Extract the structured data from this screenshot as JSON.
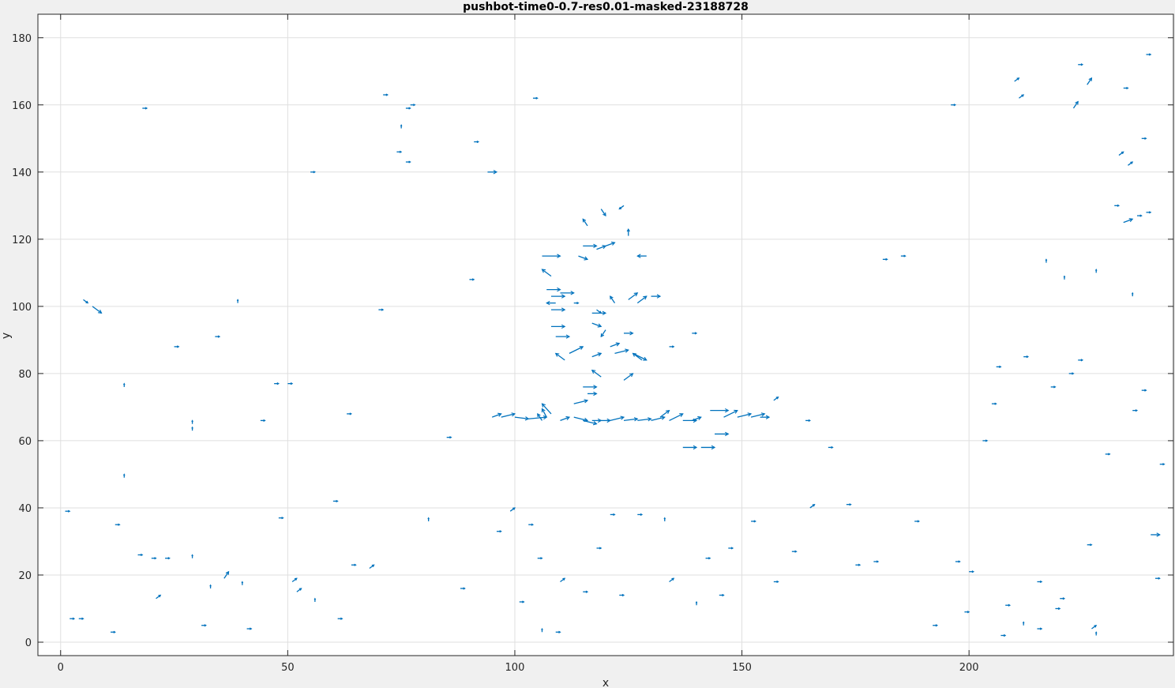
{
  "chart_data": {
    "type": "quiver",
    "title": "pushbot-time0-0.7-res0.01-masked-23188728",
    "xlabel": "x",
    "ylabel": "y",
    "xlim": [
      -5,
      245
    ],
    "ylim": [
      -4,
      187
    ],
    "xticks": [
      0,
      50,
      100,
      150,
      200
    ],
    "yticks": [
      0,
      20,
      40,
      60,
      80,
      100,
      120,
      140,
      160,
      180
    ],
    "grid": true,
    "colors": {
      "arrow": "#0072bd",
      "grid": "#dfdfdf",
      "axes": "#262626",
      "plot_bg": "#ffffff",
      "figure_bg": "#f0f0f0"
    },
    "series": [
      {
        "name": "flow vectors",
        "vectors": [
          [
            103,
            66.5,
            4,
            0.5
          ],
          [
            100,
            67,
            3,
            -0.5
          ],
          [
            97,
            67,
            3,
            1
          ],
          [
            95,
            67,
            2,
            1
          ],
          [
            108,
            68,
            -2,
            3
          ],
          [
            107,
            67,
            -1,
            2.5
          ],
          [
            106,
            66,
            -1,
            2
          ],
          [
            110,
            66,
            2,
            1
          ],
          [
            113,
            67,
            3,
            -1
          ],
          [
            115,
            66,
            3,
            -1
          ],
          [
            117,
            66,
            2,
            0
          ],
          [
            119,
            66,
            2,
            0
          ],
          [
            121,
            66,
            3,
            1
          ],
          [
            124,
            66,
            3,
            0.5
          ],
          [
            127,
            66,
            3,
            0.5
          ],
          [
            130,
            66,
            3,
            1
          ],
          [
            132,
            67,
            2,
            2
          ],
          [
            134,
            66,
            3,
            2
          ],
          [
            137,
            66,
            3,
            0
          ],
          [
            139,
            66,
            2,
            1
          ],
          [
            146,
            67,
            3,
            2
          ],
          [
            149,
            67,
            3,
            1
          ],
          [
            152,
            67,
            3,
            1
          ],
          [
            154,
            67,
            2,
            0
          ],
          [
            144,
            62,
            3,
            0
          ],
          [
            141,
            58,
            3,
            0
          ],
          [
            137,
            58,
            3,
            0
          ],
          [
            143,
            69,
            4,
            0
          ],
          [
            115,
            76,
            3,
            0
          ],
          [
            116,
            74,
            2,
            0
          ],
          [
            113,
            71,
            3,
            1
          ],
          [
            119,
            79,
            -2,
            2
          ],
          [
            124,
            78,
            2,
            2
          ],
          [
            128,
            84,
            -2,
            2
          ],
          [
            126,
            86,
            3,
            -2
          ],
          [
            122,
            86,
            3,
            1
          ],
          [
            117,
            85,
            2,
            1
          ],
          [
            112,
            86,
            3,
            2
          ],
          [
            111,
            84,
            -2,
            2
          ],
          [
            109,
            91,
            3,
            0
          ],
          [
            108,
            94,
            3,
            0
          ],
          [
            108,
            99,
            3,
            0
          ],
          [
            109,
            101,
            -2,
            0
          ],
          [
            108,
            103,
            3,
            0
          ],
          [
            107,
            105,
            3,
            0
          ],
          [
            108,
            109,
            -2,
            2
          ],
          [
            110,
            104,
            3,
            0
          ],
          [
            106,
            115,
            4,
            0
          ],
          [
            115,
            118,
            3,
            0
          ],
          [
            118,
            117,
            2,
            1
          ],
          [
            120,
            118,
            2,
            1
          ],
          [
            114,
            115,
            2,
            -1
          ],
          [
            116,
            124,
            -1,
            2
          ],
          [
            119,
            129,
            1,
            -2
          ],
          [
            124,
            130,
            -1,
            -1
          ],
          [
            125,
            121,
            0,
            2
          ],
          [
            129,
            115,
            -2,
            0
          ],
          [
            125,
            102,
            2,
            2
          ],
          [
            127,
            101,
            2,
            2
          ],
          [
            122,
            101,
            -1,
            2
          ],
          [
            117,
            98,
            3,
            0
          ],
          [
            117,
            95,
            2,
            -1
          ],
          [
            120,
            93,
            -1,
            -2
          ],
          [
            124,
            92,
            2,
            0
          ],
          [
            121,
            88,
            2,
            1
          ],
          [
            118,
            99,
            1,
            -1
          ],
          [
            130,
            103,
            2,
            0
          ],
          [
            139,
            92,
            1,
            0
          ],
          [
            134,
            88,
            1,
            0
          ],
          [
            5,
            102,
            1,
            -1
          ],
          [
            7,
            100,
            2,
            -2
          ],
          [
            14,
            76,
            0,
            1
          ],
          [
            14,
            49,
            0,
            1
          ],
          [
            17,
            26,
            1,
            0
          ],
          [
            20,
            25,
            1,
            0
          ],
          [
            23,
            25,
            1,
            0
          ],
          [
            29,
            25,
            0,
            1
          ],
          [
            29,
            65,
            0,
            1
          ],
          [
            29,
            63,
            0,
            1
          ],
          [
            33,
            16,
            0,
            1
          ],
          [
            36,
            19,
            1,
            2
          ],
          [
            40,
            17,
            0,
            1
          ],
          [
            47,
            77,
            1,
            0
          ],
          [
            48,
            37,
            1,
            0
          ],
          [
            51,
            18,
            1,
            1
          ],
          [
            52,
            15,
            1,
            1
          ],
          [
            56,
            12,
            0,
            1
          ],
          [
            61,
            7,
            1,
            0
          ],
          [
            64,
            23,
            1,
            0
          ],
          [
            68,
            22,
            1,
            1
          ],
          [
            71,
            163,
            1,
            0
          ],
          [
            74,
            146,
            1,
            0
          ],
          [
            75,
            153,
            0,
            1
          ],
          [
            76,
            143,
            1,
            0
          ],
          [
            76,
            159,
            1,
            0
          ],
          [
            77,
            160,
            1,
            0
          ],
          [
            81,
            36,
            0,
            1
          ],
          [
            91,
            149,
            1,
            0
          ],
          [
            94,
            140,
            2,
            0
          ],
          [
            99,
            39,
            1,
            1
          ],
          [
            104,
            162,
            1,
            0
          ],
          [
            103,
            35,
            1,
            0
          ],
          [
            105,
            25,
            1,
            0
          ],
          [
            109,
            3,
            1,
            0
          ],
          [
            106,
            3,
            0,
            1
          ],
          [
            110,
            18,
            1,
            1
          ],
          [
            115,
            15,
            1,
            0
          ],
          [
            123,
            14,
            1,
            0
          ],
          [
            127,
            38,
            1,
            0
          ],
          [
            133,
            36,
            0,
            1
          ],
          [
            134,
            18,
            1,
            1
          ],
          [
            140,
            11,
            0,
            1
          ],
          [
            147,
            28,
            1,
            0
          ],
          [
            152,
            36,
            1,
            0
          ],
          [
            157,
            72,
            1,
            1
          ],
          [
            164,
            66,
            1,
            0
          ],
          [
            165,
            40,
            1,
            1
          ],
          [
            175,
            23,
            1,
            0
          ],
          [
            179,
            24,
            1,
            0
          ],
          [
            188,
            36,
            1,
            0
          ],
          [
            192,
            5,
            1,
            0
          ],
          [
            197,
            24,
            1,
            0
          ],
          [
            199,
            9,
            1,
            0
          ],
          [
            200,
            21,
            1,
            0
          ],
          [
            206,
            82,
            1,
            0
          ],
          [
            207,
            2,
            1,
            0
          ],
          [
            208,
            11,
            1,
            0
          ],
          [
            210,
            167,
            1,
            1
          ],
          [
            211,
            162,
            1,
            1
          ],
          [
            212,
            5,
            0,
            1
          ],
          [
            215,
            4,
            1,
            0
          ],
          [
            219,
            10,
            1,
            0
          ],
          [
            220,
            13,
            1,
            0
          ],
          [
            222,
            80,
            1,
            0
          ],
          [
            223,
            159,
            1,
            2
          ],
          [
            226,
            166,
            1,
            2
          ],
          [
            226,
            29,
            1,
            0
          ],
          [
            227,
            4,
            1,
            1
          ],
          [
            228,
            2,
            0,
            1
          ],
          [
            228,
            110,
            0,
            1
          ],
          [
            232,
            130,
            1,
            0
          ],
          [
            234,
            125,
            2,
            1
          ],
          [
            235,
            142,
            1,
            1
          ],
          [
            237,
            127,
            1,
            0
          ],
          [
            239,
            128,
            1,
            0
          ],
          [
            239,
            175,
            1,
            0
          ],
          [
            240,
            32,
            2,
            0
          ],
          [
            242,
            53,
            1,
            0
          ],
          [
            233,
            145,
            1,
            1
          ],
          [
            234,
            165,
            1,
            0
          ],
          [
            236,
            103,
            0,
            1
          ],
          [
            238,
            150,
            1,
            0
          ],
          [
            218,
            76,
            1,
            0
          ],
          [
            224,
            84,
            1,
            0
          ],
          [
            217,
            113,
            0,
            1
          ],
          [
            221,
            108,
            0,
            1
          ],
          [
            1,
            39,
            1,
            0
          ],
          [
            2,
            7,
            1,
            0
          ],
          [
            4,
            7,
            1,
            0
          ],
          [
            11,
            3,
            1,
            0
          ],
          [
            12,
            35,
            1,
            0
          ],
          [
            18,
            159,
            1,
            0
          ],
          [
            21,
            13,
            1,
            1
          ],
          [
            25,
            88,
            1,
            0
          ],
          [
            31,
            5,
            1,
            0
          ],
          [
            34,
            91,
            1,
            0
          ],
          [
            39,
            101,
            0,
            1
          ],
          [
            41,
            4,
            1,
            0
          ],
          [
            44,
            66,
            1,
            0
          ],
          [
            50,
            77,
            1,
            0
          ],
          [
            55,
            140,
            1,
            0
          ],
          [
            60,
            42,
            1,
            0
          ],
          [
            63,
            68,
            1,
            0
          ],
          [
            70,
            99,
            1,
            0
          ],
          [
            85,
            61,
            1,
            0
          ],
          [
            88,
            16,
            1,
            0
          ],
          [
            90,
            108,
            1,
            0
          ],
          [
            96,
            33,
            1,
            0
          ],
          [
            101,
            12,
            1,
            0
          ],
          [
            113,
            101,
            1,
            0
          ],
          [
            118,
            28,
            1,
            0
          ],
          [
            121,
            38,
            1,
            0
          ],
          [
            142,
            25,
            1,
            0
          ],
          [
            145,
            14,
            1,
            0
          ],
          [
            157,
            18,
            1,
            0
          ],
          [
            161,
            27,
            1,
            0
          ],
          [
            169,
            58,
            1,
            0
          ],
          [
            173,
            41,
            1,
            0
          ],
          [
            181,
            114,
            1,
            0
          ],
          [
            185,
            115,
            1,
            0
          ],
          [
            196,
            160,
            1,
            0
          ],
          [
            203,
            60,
            1,
            0
          ],
          [
            205,
            71,
            1,
            0
          ],
          [
            212,
            85,
            1,
            0
          ],
          [
            215,
            18,
            1,
            0
          ],
          [
            230,
            56,
            1,
            0
          ],
          [
            236,
            69,
            1,
            0
          ],
          [
            238,
            75,
            1,
            0
          ],
          [
            241,
            19,
            1,
            0
          ],
          [
            224,
            172,
            1,
            0
          ]
        ]
      }
    ]
  }
}
